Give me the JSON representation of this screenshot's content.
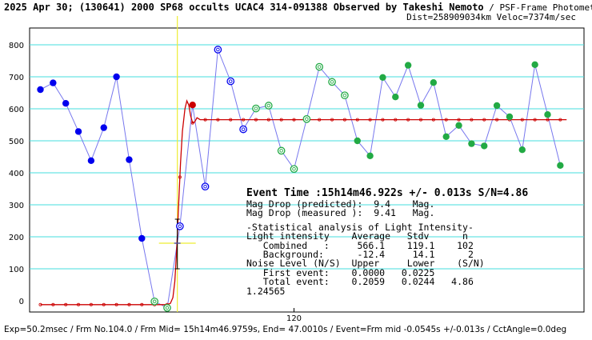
{
  "header": {
    "title": "2025 Apr 30; (130641) 2000 SP68 occults UCAC4 314-091388 Observed by Takeshi Nemoto",
    "method": " / PSF-Frame Photometry /",
    "dist": "Dist=258909034km Veloc=7374m/sec"
  },
  "footer": "Exp=50.2msec / Frm No.104.0 / Frm Mid= 15h14m46.9759s, End= 47.0010s / Event=Frm mid -0.0545s +/-0.013s / CctAngle=0.0deg",
  "stats": {
    "event": "Event Time :15h14m46.922s +/- 0.013s S/N=4.86",
    "lines": [
      "Mag Drop (predicted):  9.4    Mag.",
      "Mag Drop (measured ):  9.41   Mag.",
      "",
      "-Statistical analysis of Light Intensity-",
      "Light intensity    Average   Stdv      n",
      "   Combined   :     566.1    119.1    102",
      "   Background:      -12.4     14.1      2",
      "Noise Level (N/S)  Upper     Lower    (S/N)",
      "   First event:    0.0000   0.0225",
      "   Total event:    0.2059   0.0244   4.86",
      "1.24565"
    ]
  },
  "chart_data": {
    "type": "scatter",
    "x_tick_labels": [
      "120"
    ],
    "y_tick_labels": [
      "0",
      "100",
      "200",
      "300",
      "400",
      "500",
      "600",
      "700",
      "800"
    ],
    "ylim": [
      -30,
      830
    ],
    "xlim": [
      100.0,
      142.7
    ],
    "grid": true,
    "colors": {
      "blue": "#0000ee",
      "green": "#22aa44",
      "line": "#7777ee",
      "fit": "#cc0000",
      "grid": "#44dddd",
      "event": "#eeee33"
    },
    "event_x": 110.8,
    "event_y": 233,
    "event_err_low": 100,
    "event_err_high": 255,
    "series": [
      {
        "values": [
          [
            100.0,
            660,
            "blue"
          ],
          [
            101.0,
            681,
            "blue"
          ],
          [
            102.0,
            617,
            "blue"
          ],
          [
            103.0,
            529,
            "blue"
          ],
          [
            104.0,
            438,
            "blue"
          ],
          [
            105.0,
            541,
            "blue"
          ],
          [
            106.0,
            700,
            "blue"
          ],
          [
            107.0,
            441,
            "blue"
          ],
          [
            108.0,
            195,
            "blue"
          ],
          [
            109.0,
            -2,
            "green_ring"
          ],
          [
            110.0,
            -22,
            "green_ring"
          ],
          [
            111.0,
            233,
            "blue_ring"
          ],
          [
            112.0,
            612,
            "red"
          ],
          [
            113.0,
            357,
            "blue_ring"
          ],
          [
            114.0,
            785,
            "blue_ring"
          ],
          [
            115.0,
            686,
            "blue_ring"
          ],
          [
            116.0,
            536,
            "blue_ring"
          ],
          [
            117.0,
            601,
            "green_ring"
          ],
          [
            118.0,
            610,
            "green_ring"
          ],
          [
            119.0,
            469,
            "green_ring"
          ],
          [
            120.0,
            412,
            "green_ring"
          ],
          [
            121.0,
            568,
            "green_ring"
          ],
          [
            122.0,
            731,
            "green_ring"
          ],
          [
            123.0,
            684,
            "green_ring"
          ],
          [
            124.0,
            642,
            "green_ring"
          ],
          [
            125.0,
            500,
            "green"
          ],
          [
            126.0,
            453,
            "green"
          ],
          [
            127.0,
            698,
            "green"
          ],
          [
            128.0,
            637,
            "green"
          ],
          [
            129.0,
            736,
            "green"
          ],
          [
            130.0,
            611,
            "green"
          ],
          [
            131.0,
            682,
            "green"
          ],
          [
            132.0,
            513,
            "green"
          ],
          [
            133.0,
            548,
            "green"
          ],
          [
            134.0,
            491,
            "green"
          ],
          [
            135.0,
            484,
            "green"
          ],
          [
            136.0,
            610,
            "green"
          ],
          [
            137.0,
            575,
            "green"
          ],
          [
            138.0,
            472,
            "green"
          ],
          [
            139.0,
            738,
            "green"
          ],
          [
            140.0,
            582,
            "green"
          ],
          [
            141.0,
            423,
            "green"
          ]
        ]
      }
    ],
    "fit_curve": [
      [
        100.0,
        -12
      ],
      [
        110.0,
        -12
      ],
      [
        110.25,
        -8
      ],
      [
        110.45,
        10
      ],
      [
        110.6,
        60
      ],
      [
        110.75,
        160
      ],
      [
        110.9,
        300
      ],
      [
        111.05,
        430
      ],
      [
        111.2,
        530
      ],
      [
        111.4,
        600
      ],
      [
        111.55,
        625
      ],
      [
        111.7,
        612
      ],
      [
        111.85,
        578
      ],
      [
        112.0,
        556
      ],
      [
        112.15,
        558
      ],
      [
        112.35,
        572
      ],
      [
        112.6,
        566
      ],
      [
        141.5,
        566
      ]
    ],
    "fit_marker_spacing": 1.0
  }
}
